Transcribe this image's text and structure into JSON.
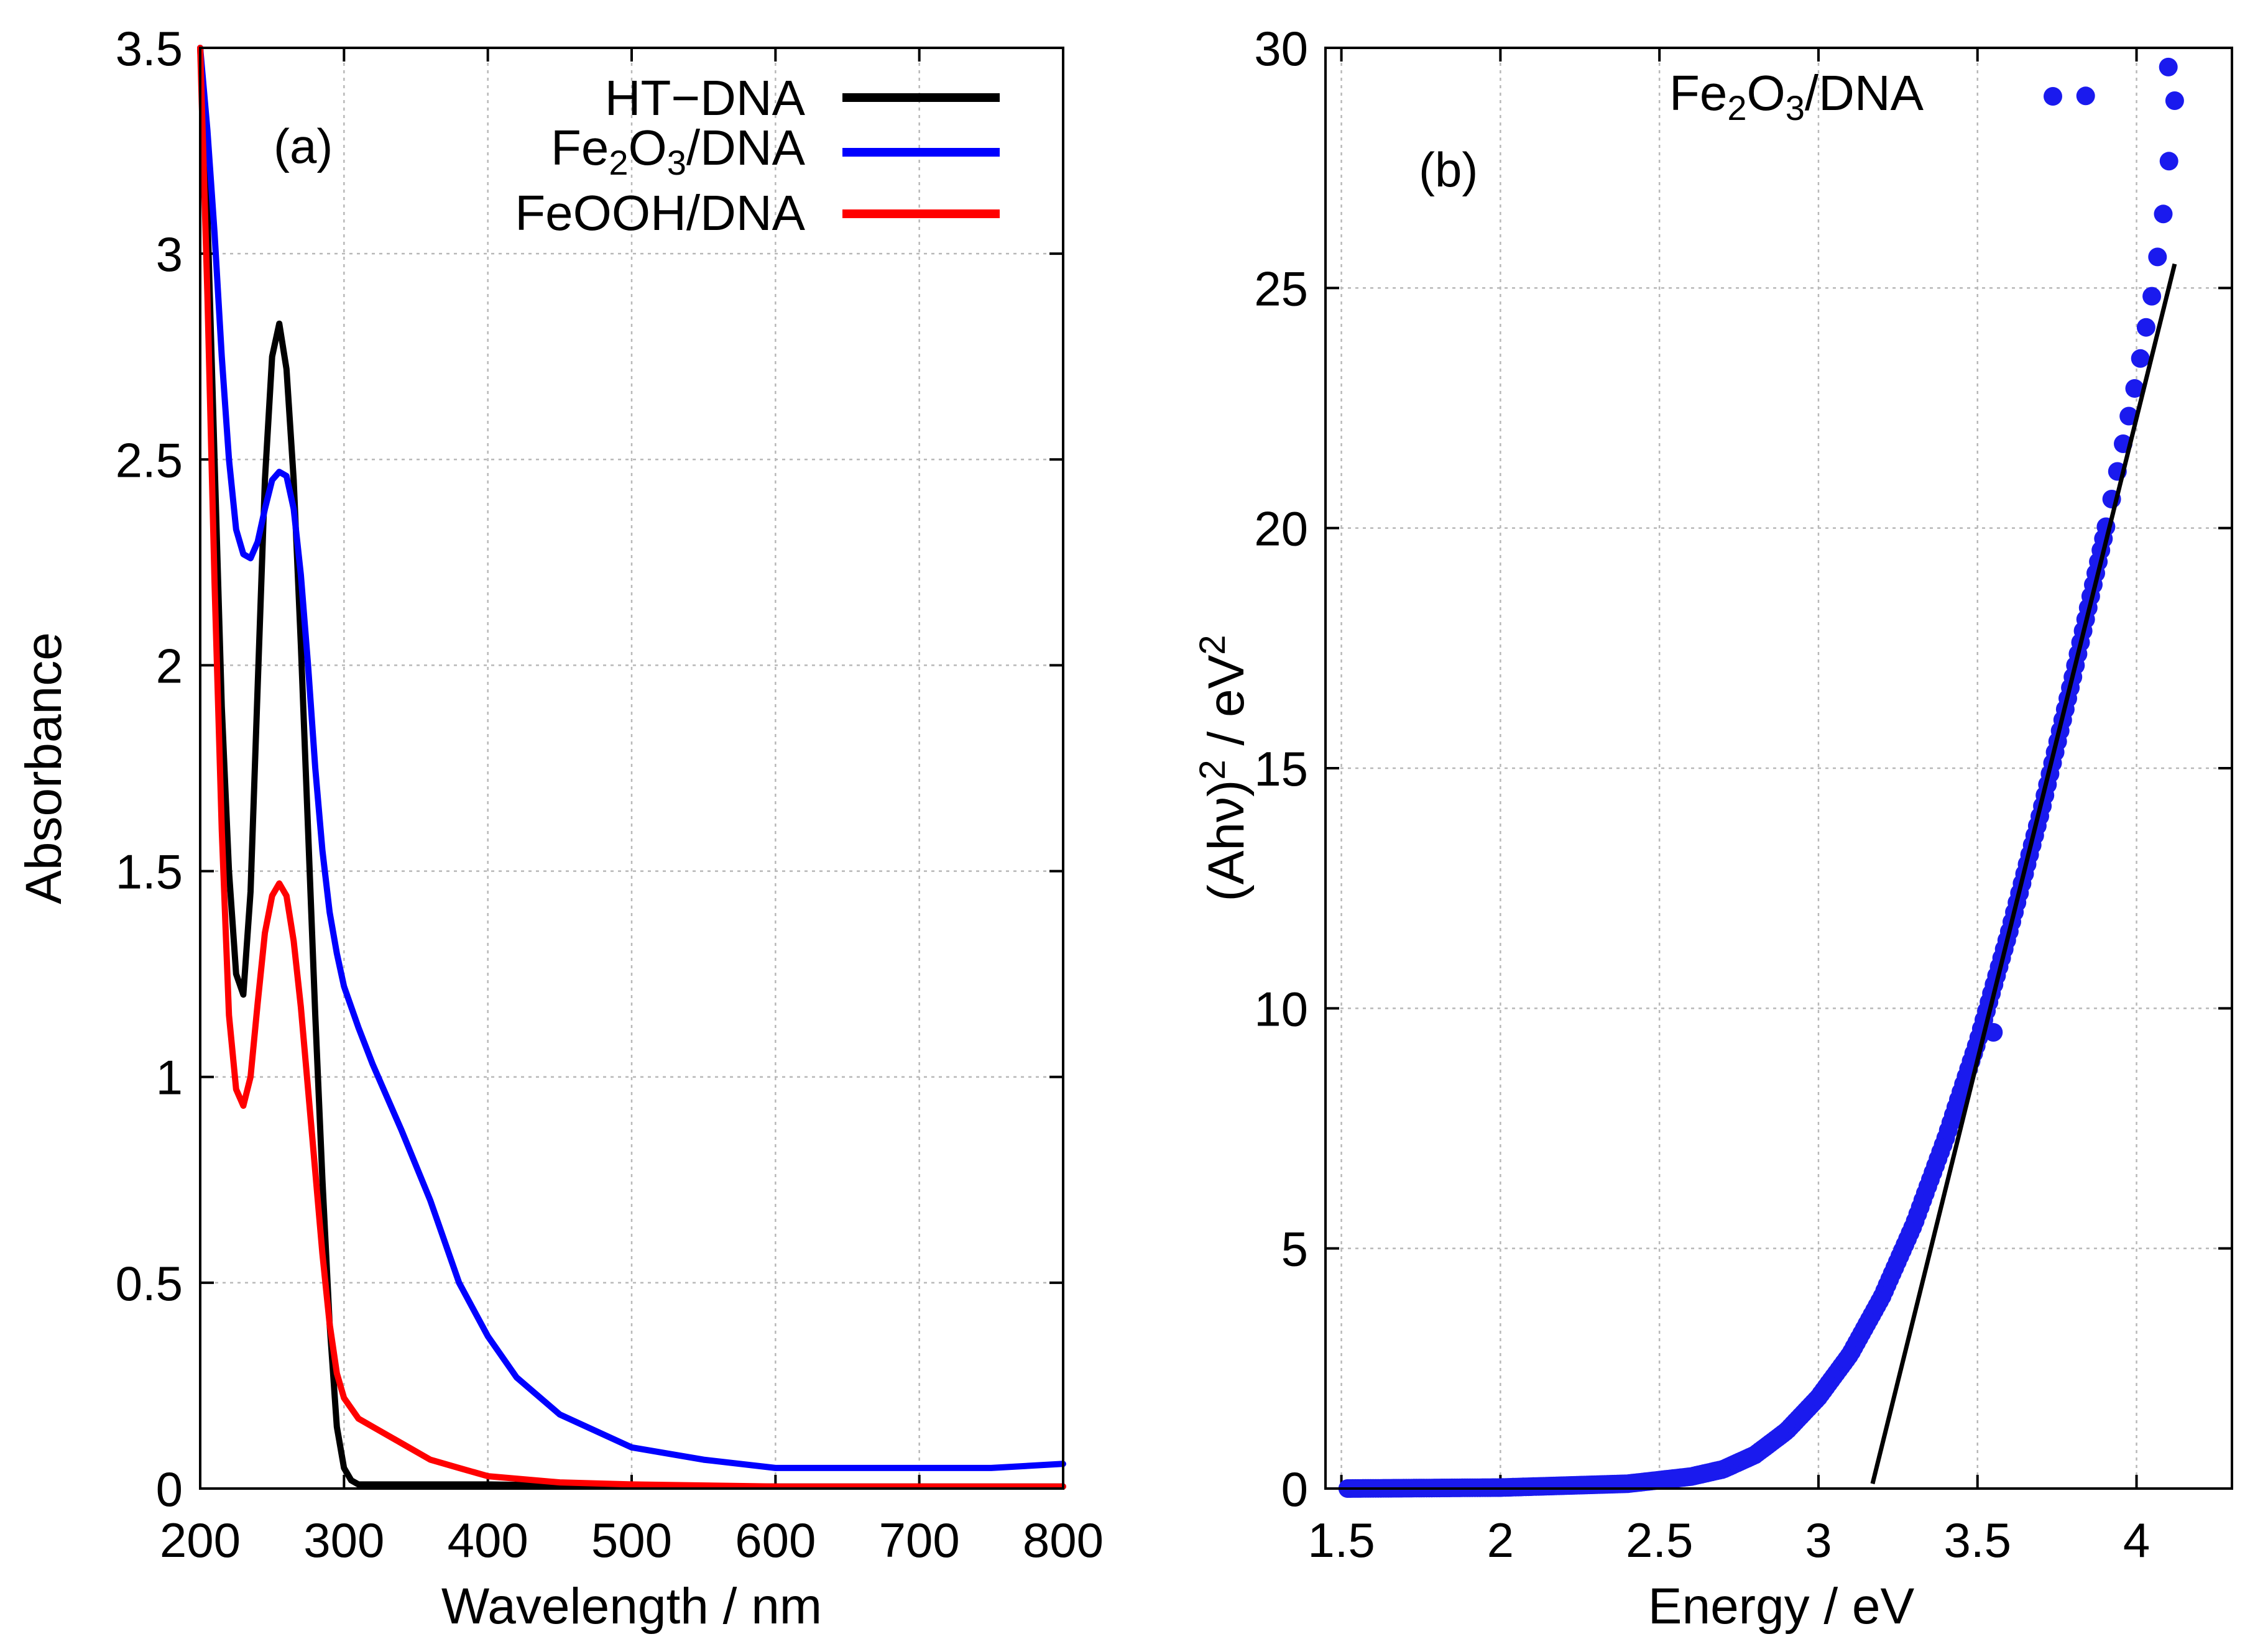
{
  "chart_data": [
    {
      "id": "a",
      "type": "line",
      "panel_label": "(a)",
      "xlabel": "Wavelength / nm",
      "ylabel": "Absorbance",
      "xlim": [
        200,
        800
      ],
      "ylim": [
        0,
        3.5
      ],
      "xticks": [
        200,
        300,
        400,
        500,
        600,
        700,
        800
      ],
      "yticks": [
        0,
        0.5,
        1,
        1.5,
        2,
        2.5,
        3,
        3.5
      ],
      "ytick_labels": [
        "0",
        "0.5",
        "1",
        "1.5",
        "2",
        "2.5",
        "3",
        "3.5"
      ],
      "grid": true,
      "legend_position": "top-right",
      "series": [
        {
          "name": "HT−DNA",
          "legend": {
            "text": "HT−DNA"
          },
          "color": "#000000",
          "x": [
            200,
            205,
            210,
            215,
            220,
            225,
            230,
            235,
            240,
            245,
            250,
            255,
            260,
            265,
            270,
            275,
            280,
            285,
            290,
            295,
            300,
            305,
            310,
            320,
            340,
            400,
            500,
            600,
            700,
            800
          ],
          "y": [
            3.5,
            3.1,
            2.5,
            1.9,
            1.5,
            1.25,
            1.2,
            1.45,
            1.95,
            2.45,
            2.75,
            2.83,
            2.72,
            2.45,
            2.05,
            1.6,
            1.15,
            0.75,
            0.4,
            0.15,
            0.05,
            0.02,
            0.01,
            0.01,
            0.01,
            0.01,
            0.005,
            0.005,
            0.005,
            0.005
          ]
        },
        {
          "name": "Fe2O3/DNA",
          "legend": {
            "text": "Fe",
            "sub1": "2",
            "mid": "O",
            "sub2": "3",
            "tail": "/DNA"
          },
          "color": "#0000ff",
          "x": [
            200,
            205,
            210,
            215,
            220,
            225,
            230,
            235,
            240,
            245,
            250,
            255,
            260,
            265,
            270,
            275,
            280,
            285,
            290,
            295,
            300,
            310,
            320,
            340,
            360,
            380,
            400,
            420,
            450,
            500,
            550,
            600,
            650,
            700,
            750,
            800
          ],
          "y": [
            3.5,
            3.3,
            3.05,
            2.75,
            2.5,
            2.33,
            2.27,
            2.26,
            2.3,
            2.38,
            2.45,
            2.47,
            2.46,
            2.38,
            2.22,
            2.0,
            1.75,
            1.55,
            1.4,
            1.3,
            1.22,
            1.12,
            1.03,
            0.87,
            0.7,
            0.5,
            0.37,
            0.27,
            0.18,
            0.1,
            0.07,
            0.05,
            0.05,
            0.05,
            0.05,
            0.06
          ]
        },
        {
          "name": "FeOOH/DNA",
          "legend": {
            "text": "FeOOH/DNA"
          },
          "color": "#ff0000",
          "x": [
            200,
            205,
            210,
            215,
            220,
            225,
            230,
            235,
            240,
            245,
            250,
            255,
            260,
            265,
            270,
            275,
            280,
            285,
            290,
            295,
            300,
            310,
            320,
            340,
            360,
            380,
            400,
            450,
            500,
            600,
            700,
            800
          ],
          "y": [
            3.5,
            2.9,
            2.2,
            1.6,
            1.15,
            0.97,
            0.93,
            1.0,
            1.18,
            1.35,
            1.44,
            1.47,
            1.44,
            1.33,
            1.17,
            0.97,
            0.77,
            0.57,
            0.4,
            0.28,
            0.22,
            0.17,
            0.15,
            0.11,
            0.07,
            0.05,
            0.03,
            0.015,
            0.01,
            0.005,
            0.005,
            0.005
          ]
        }
      ]
    },
    {
      "id": "b",
      "type": "scatter",
      "panel_label": "(b)",
      "xlabel": "Energy / eV",
      "ylabel": {
        "pre": "(Ahν)",
        "sup1": "2",
        "mid": " / eV",
        "sup2": "2"
      },
      "xlim": [
        1.45,
        4.3
      ],
      "ylim": [
        0,
        30
      ],
      "xticks": [
        1.5,
        2,
        2.5,
        3,
        3.5,
        4
      ],
      "xtick_labels": [
        "1.5",
        "2",
        "2.5",
        "3",
        "3.5",
        "4"
      ],
      "yticks": [
        0,
        5,
        10,
        15,
        20,
        25,
        30
      ],
      "ytick_labels": [
        "0",
        "5",
        "10",
        "15",
        "20",
        "25",
        "30"
      ],
      "grid": true,
      "legend_position": "top",
      "series": [
        {
          "name": "Fe2O3/DNA",
          "legend": {
            "text": "Fe",
            "sub1": "2",
            "mid": "O",
            "sub2": "3",
            "tail": "/DNA"
          },
          "color": "#1a1aee",
          "marker": "circle",
          "curve_points_x": [
            1.52,
            2.0,
            2.4,
            2.6,
            2.7,
            2.8,
            2.9,
            3.0,
            3.1,
            3.2,
            3.3,
            3.4,
            3.5,
            3.6,
            3.7,
            3.8,
            3.9,
            4.0,
            4.05,
            4.08,
            4.1,
            4.12
          ],
          "curve_points_y": [
            0.0,
            0.02,
            0.1,
            0.25,
            0.4,
            0.7,
            1.2,
            1.9,
            2.8,
            4.0,
            5.5,
            7.3,
            9.3,
            11.6,
            14.1,
            16.9,
            19.9,
            23.1,
            24.9,
            26.3,
            27.5,
            28.9
          ],
          "extra_points": [
            [
              3.55,
              9.5
            ],
            [
              3.84,
              29.0
            ],
            [
              4.1,
              29.6
            ]
          ]
        },
        {
          "name": "linear-fit",
          "type": "line",
          "color": "#000000",
          "x": [
            3.17,
            4.12
          ],
          "y": [
            0.1,
            25.5
          ]
        }
      ]
    }
  ]
}
